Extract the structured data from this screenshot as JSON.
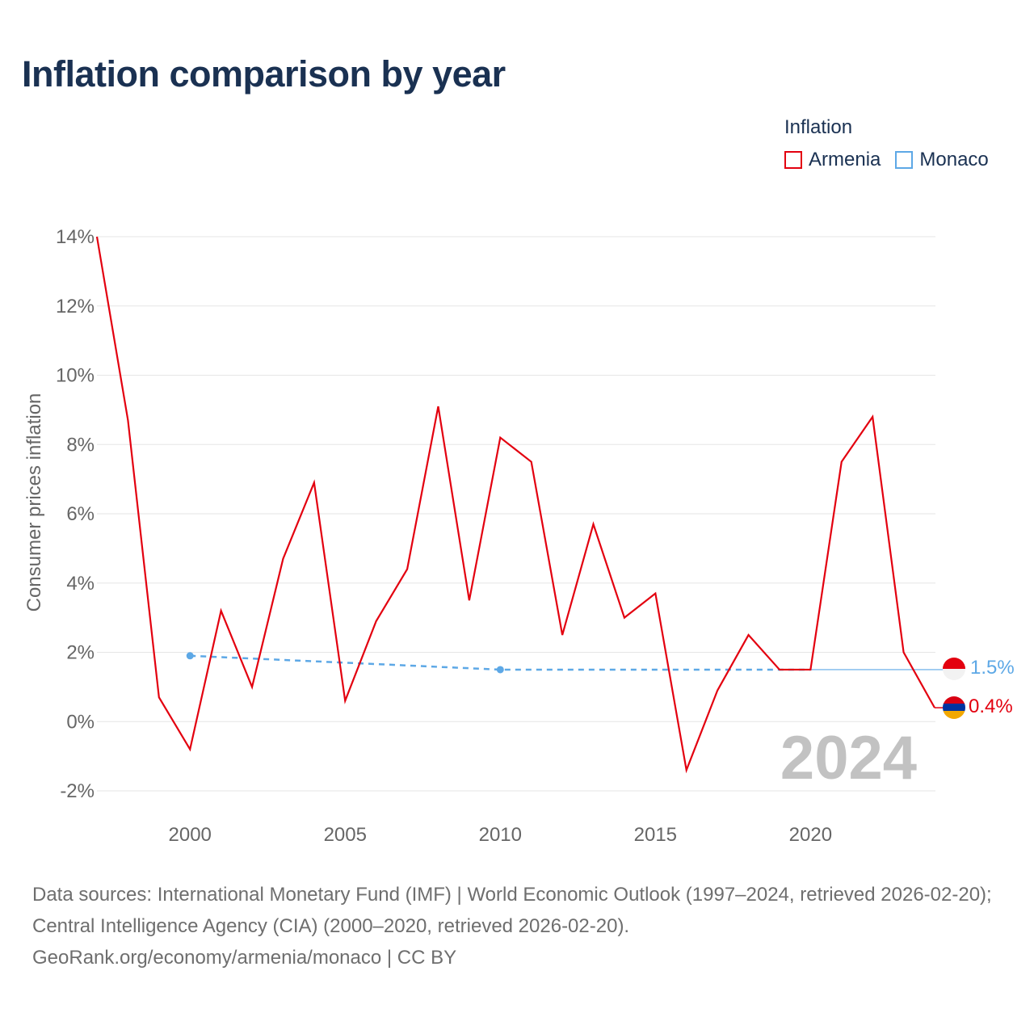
{
  "title": "Inflation comparison by year",
  "legend": {
    "title": "Inflation",
    "items": [
      {
        "label": "Armenia",
        "color": "#e3000f"
      },
      {
        "label": "Monaco",
        "color": "#5da8e6"
      }
    ]
  },
  "chart_data": {
    "type": "line",
    "title": "Inflation comparison by year",
    "xlabel": "",
    "ylabel": "Consumer prices inflation",
    "xlim": [
      1997,
      2024
    ],
    "ylim": [
      -2,
      14
    ],
    "y_ticks": [
      -2,
      0,
      2,
      4,
      6,
      8,
      10,
      12,
      14
    ],
    "y_tick_labels": [
      "-2%",
      "0%",
      "2%",
      "4%",
      "6%",
      "8%",
      "10%",
      "12%",
      "14%"
    ],
    "x_ticks": [
      2000,
      2005,
      2010,
      2015,
      2020
    ],
    "x_tick_labels": [
      "2000",
      "2005",
      "2010",
      "2015",
      "2020"
    ],
    "watermark_year": "2024",
    "series": [
      {
        "name": "Armenia",
        "color": "#e3000f",
        "x": [
          1997,
          1998,
          1999,
          2000,
          2001,
          2002,
          2003,
          2004,
          2005,
          2006,
          2007,
          2008,
          2009,
          2010,
          2011,
          2012,
          2013,
          2014,
          2015,
          2016,
          2017,
          2018,
          2019,
          2020,
          2021,
          2022,
          2023,
          2024
        ],
        "values": [
          14.0,
          8.7,
          0.7,
          -0.8,
          3.2,
          1.0,
          4.7,
          6.9,
          0.6,
          2.9,
          4.4,
          9.1,
          3.5,
          8.2,
          7.5,
          2.5,
          5.7,
          3.0,
          3.7,
          -1.4,
          0.9,
          2.5,
          1.5,
          1.5,
          7.5,
          8.8,
          2.0,
          0.4
        ],
        "end_label": "0.4%"
      },
      {
        "name": "Monaco",
        "color": "#5da8e6",
        "x": [
          2000,
          2010,
          2020,
          2024
        ],
        "values": [
          1.9,
          1.5,
          1.5,
          1.5
        ],
        "end_label": "1.5%"
      }
    ]
  },
  "source": {
    "line1": "Data sources: International Monetary Fund (IMF) | World Economic Outlook (1997–2024, retrieved 2026-02-20); Central Intelligence Agency (CIA) (2000–2020, retrieved 2026-02-20).",
    "line2": "GeoRank.org/economy/armenia/monaco | CC BY"
  }
}
